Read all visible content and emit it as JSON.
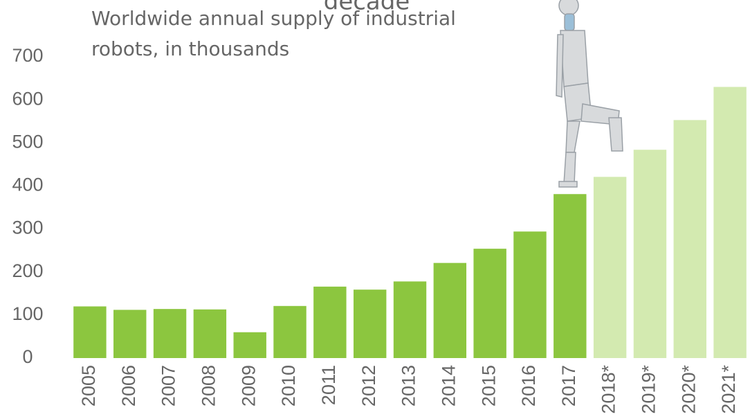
{
  "chart_data": {
    "type": "bar",
    "title": "decade",
    "subtitle_lines": [
      "Worldwide annual supply of industrial",
      "robots, in thousands"
    ],
    "categories": [
      "2005",
      "2006",
      "2007",
      "2008",
      "2009",
      "2010",
      "2011",
      "2012",
      "2013",
      "2014",
      "2015",
      "2016",
      "2017",
      "2018*",
      "2019*",
      "2020*",
      "2021*"
    ],
    "values": [
      120,
      112,
      114,
      113,
      60,
      121,
      166,
      159,
      178,
      221,
      254,
      294,
      381,
      421,
      484,
      553,
      630
    ],
    "colors": [
      "#8cc63f",
      "#8cc63f",
      "#8cc63f",
      "#8cc63f",
      "#8cc63f",
      "#8cc63f",
      "#8cc63f",
      "#8cc63f",
      "#8cc63f",
      "#8cc63f",
      "#8cc63f",
      "#8cc63f",
      "#8cc63f",
      "#d3eab0",
      "#d3eab0",
      "#d3eab0",
      "#d3eab0"
    ],
    "ylim": [
      0,
      700
    ],
    "yticks": [
      0,
      100,
      200,
      300,
      400,
      500,
      600,
      700
    ],
    "grid": false
  }
}
